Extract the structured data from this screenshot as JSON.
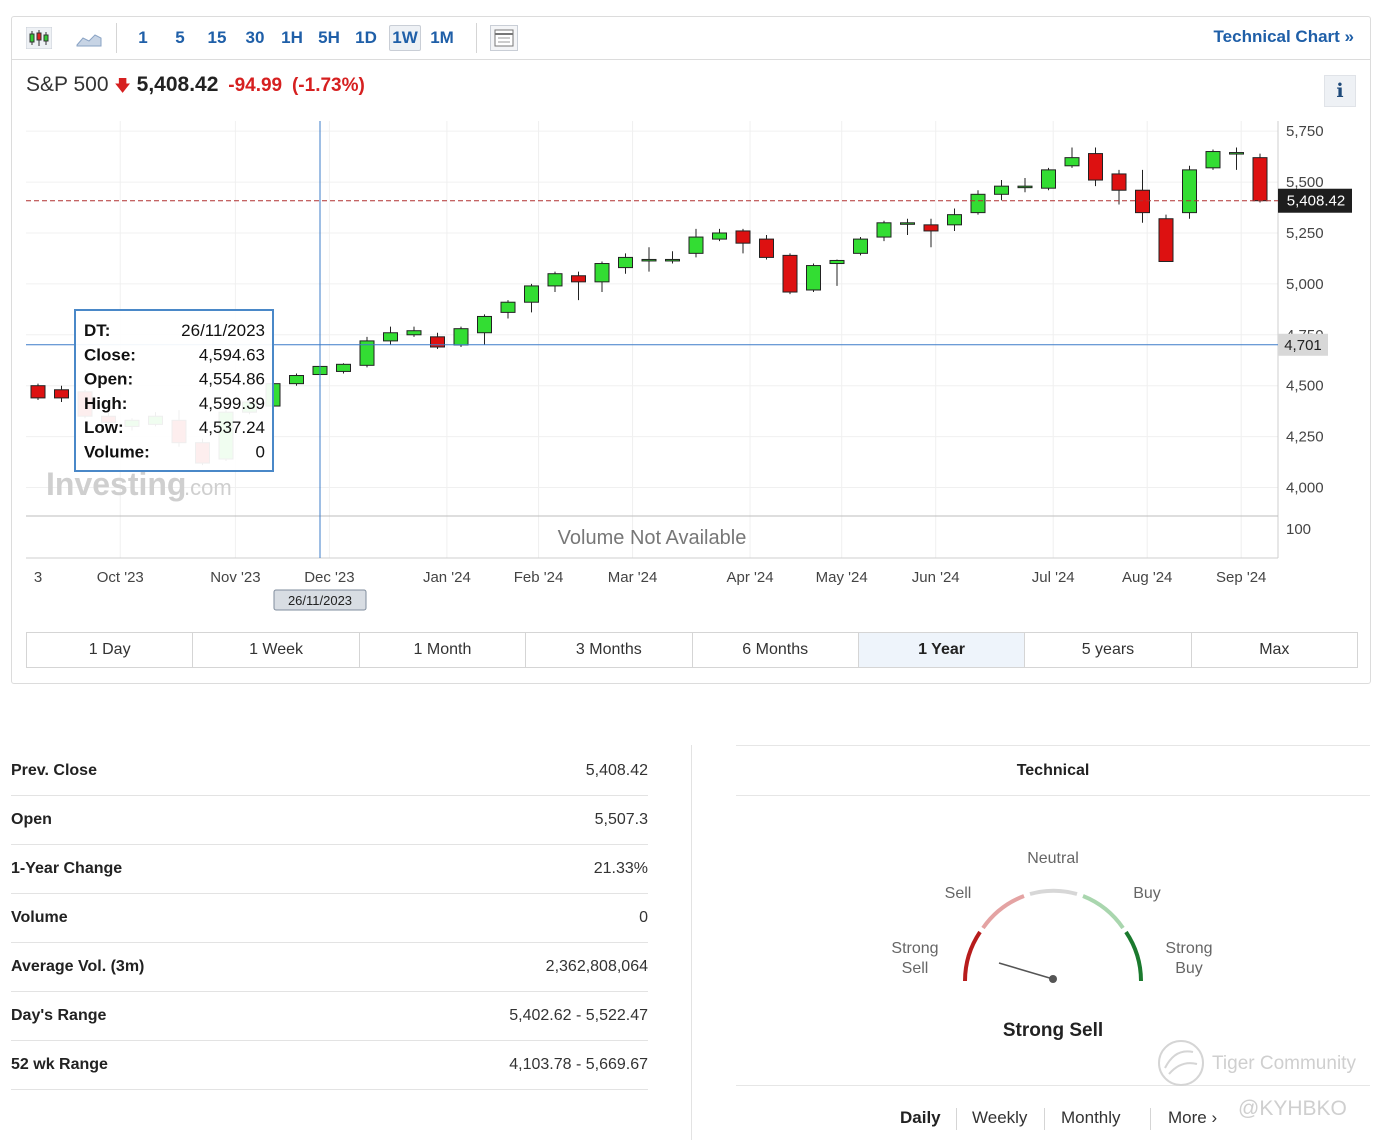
{
  "toolbar": {
    "intervals": [
      "1",
      "5",
      "15",
      "30",
      "1H",
      "5H",
      "1D",
      "1W",
      "1M"
    ],
    "active_interval": "1W",
    "technical_chart_link": "Technical Chart »"
  },
  "quote": {
    "name": "S&P 500",
    "price": "5,408.42",
    "change": "-94.99",
    "change_pct": "(-1.73%)",
    "direction": "down"
  },
  "tooltip": {
    "rows": [
      {
        "label": "DT:",
        "value": "26/11/2023"
      },
      {
        "label": "Close:",
        "value": "4,594.63"
      },
      {
        "label": "Open:",
        "value": "4,554.86"
      },
      {
        "label": "High:",
        "value": "4,599.39"
      },
      {
        "label": "Low:",
        "value": "4,537.24"
      },
      {
        "label": "Volume:",
        "value": "0"
      }
    ]
  },
  "crosshair": {
    "date_label": "26/11/2023",
    "price_label": "4,701",
    "price": 4701
  },
  "volume_note": "Volume Not Available",
  "volume_axis_label": "100",
  "watermark": {
    "brand": "Investing",
    "suffix": ".com"
  },
  "chart_data": {
    "type": "candlestick",
    "ylim": [
      3860,
      5800
    ],
    "y_ticks": [
      {
        "value": 4000,
        "label": "4,000"
      },
      {
        "value": 4250,
        "label": "4,250"
      },
      {
        "value": 4500,
        "label": "4,500"
      },
      {
        "value": 4750,
        "label": "4,750"
      },
      {
        "value": 5000,
        "label": "5,000"
      },
      {
        "value": 5250,
        "label": "5,250"
      },
      {
        "value": 5500,
        "label": "5,500"
      },
      {
        "value": 5750,
        "label": "5,750"
      }
    ],
    "x_ticks": [
      {
        "index": 0,
        "label": "3"
      },
      {
        "index": 3.5,
        "label": "Oct '23"
      },
      {
        "index": 8.4,
        "label": "Nov '23"
      },
      {
        "index": 12.4,
        "label": "Dec '23"
      },
      {
        "index": 17.4,
        "label": "Jan '24"
      },
      {
        "index": 21.3,
        "label": "Feb '24"
      },
      {
        "index": 25.3,
        "label": "Mar '24"
      },
      {
        "index": 30.3,
        "label": "Apr '24"
      },
      {
        "index": 34.2,
        "label": "May '24"
      },
      {
        "index": 38.2,
        "label": "Jun '24"
      },
      {
        "index": 43.2,
        "label": "Jul '24"
      },
      {
        "index": 47.2,
        "label": "Aug '24"
      },
      {
        "index": 51.2,
        "label": "Sep '24"
      }
    ],
    "last_price": {
      "value": 5408.42,
      "label": "5,408.42"
    },
    "candles": [
      {
        "o": 4500,
        "h": 4510,
        "l": 4430,
        "c": 4440
      },
      {
        "o": 4480,
        "h": 4500,
        "l": 4420,
        "c": 4440
      },
      {
        "o": 4470,
        "h": 4480,
        "l": 4340,
        "c": 4350
      },
      {
        "o": 4350,
        "h": 4390,
        "l": 4310,
        "c": 4320
      },
      {
        "o": 4300,
        "h": 4340,
        "l": 4280,
        "c": 4330
      },
      {
        "o": 4310,
        "h": 4370,
        "l": 4300,
        "c": 4350
      },
      {
        "o": 4330,
        "h": 4380,
        "l": 4200,
        "c": 4220
      },
      {
        "o": 4220,
        "h": 4240,
        "l": 4110,
        "c": 4120
      },
      {
        "o": 4140,
        "h": 4380,
        "l": 4130,
        "c": 4370
      },
      {
        "o": 4370,
        "h": 4430,
        "l": 4360,
        "c": 4420
      },
      {
        "o": 4400,
        "h": 4520,
        "l": 4390,
        "c": 4510
      },
      {
        "o": 4510,
        "h": 4560,
        "l": 4500,
        "c": 4550
      },
      {
        "o": 4554.86,
        "h": 4599.39,
        "l": 4537.24,
        "c": 4594.63
      },
      {
        "o": 4570,
        "h": 4610,
        "l": 4560,
        "c": 4605
      },
      {
        "o": 4600,
        "h": 4740,
        "l": 4590,
        "c": 4720
      },
      {
        "o": 4720,
        "h": 4790,
        "l": 4700,
        "c": 4760
      },
      {
        "o": 4750,
        "h": 4790,
        "l": 4740,
        "c": 4770
      },
      {
        "o": 4740,
        "h": 4760,
        "l": 4680,
        "c": 4690
      },
      {
        "o": 4700,
        "h": 4790,
        "l": 4690,
        "c": 4780
      },
      {
        "o": 4760,
        "h": 4850,
        "l": 4700,
        "c": 4840
      },
      {
        "o": 4860,
        "h": 4920,
        "l": 4830,
        "c": 4910
      },
      {
        "o": 4910,
        "h": 5000,
        "l": 4860,
        "c": 4990
      },
      {
        "o": 4990,
        "h": 5060,
        "l": 4960,
        "c": 5050
      },
      {
        "o": 5040,
        "h": 5060,
        "l": 4920,
        "c": 5010
      },
      {
        "o": 5010,
        "h": 5110,
        "l": 4960,
        "c": 5100
      },
      {
        "o": 5080,
        "h": 5150,
        "l": 5050,
        "c": 5130
      },
      {
        "o": 5120,
        "h": 5180,
        "l": 5060,
        "c": 5120
      },
      {
        "o": 5120,
        "h": 5160,
        "l": 5100,
        "c": 5120
      },
      {
        "o": 5150,
        "h": 5270,
        "l": 5130,
        "c": 5230
      },
      {
        "o": 5220,
        "h": 5270,
        "l": 5210,
        "c": 5250
      },
      {
        "o": 5260,
        "h": 5270,
        "l": 5150,
        "c": 5200
      },
      {
        "o": 5220,
        "h": 5240,
        "l": 5120,
        "c": 5130
      },
      {
        "o": 5140,
        "h": 5150,
        "l": 4950,
        "c": 4960
      },
      {
        "o": 4970,
        "h": 5100,
        "l": 4960,
        "c": 5090
      },
      {
        "o": 5100,
        "h": 5120,
        "l": 4990,
        "c": 5115
      },
      {
        "o": 5150,
        "h": 5230,
        "l": 5140,
        "c": 5220
      },
      {
        "o": 5230,
        "h": 5310,
        "l": 5210,
        "c": 5300
      },
      {
        "o": 5300,
        "h": 5320,
        "l": 5240,
        "c": 5300
      },
      {
        "o": 5290,
        "h": 5320,
        "l": 5180,
        "c": 5260
      },
      {
        "o": 5290,
        "h": 5370,
        "l": 5260,
        "c": 5340
      },
      {
        "o": 5350,
        "h": 5460,
        "l": 5340,
        "c": 5440
      },
      {
        "o": 5440,
        "h": 5510,
        "l": 5410,
        "c": 5480
      },
      {
        "o": 5480,
        "h": 5520,
        "l": 5450,
        "c": 5480
      },
      {
        "o": 5470,
        "h": 5570,
        "l": 5460,
        "c": 5560
      },
      {
        "o": 5580,
        "h": 5670,
        "l": 5570,
        "c": 5620
      },
      {
        "o": 5640,
        "h": 5670,
        "l": 5480,
        "c": 5510
      },
      {
        "o": 5540,
        "h": 5560,
        "l": 5390,
        "c": 5460
      },
      {
        "o": 5460,
        "h": 5560,
        "l": 5300,
        "c": 5350
      },
      {
        "o": 5320,
        "h": 5340,
        "l": 5110,
        "c": 5110
      },
      {
        "o": 5350,
        "h": 5580,
        "l": 5320,
        "c": 5560
      },
      {
        "o": 5570,
        "h": 5660,
        "l": 5560,
        "c": 5650
      },
      {
        "o": 5645,
        "h": 5670,
        "l": 5560,
        "c": 5645
      },
      {
        "o": 5620,
        "h": 5640,
        "l": 5400,
        "c": 5408.42
      }
    ]
  },
  "ranges": [
    "1 Day",
    "1 Week",
    "1 Month",
    "3 Months",
    "6 Months",
    "1 Year",
    "5 years",
    "Max"
  ],
  "active_range": "1 Year",
  "stats": [
    {
      "label": "Prev. Close",
      "value": "5,408.42"
    },
    {
      "label": "Open",
      "value": "5,507.3"
    },
    {
      "label": "1-Year Change",
      "value": "21.33%"
    },
    {
      "label": "Volume",
      "value": "0"
    },
    {
      "label": "Average Vol. (3m)",
      "value": "2,362,808,064"
    },
    {
      "label": "Day's Range",
      "value": "5,402.62 - 5,522.47"
    },
    {
      "label": "52 wk Range",
      "value": "4,103.78 - 5,669.67"
    }
  ],
  "technical": {
    "title": "Technical",
    "labels": {
      "strong_sell": "Strong Sell",
      "sell": "Sell",
      "neutral": "Neutral",
      "buy": "Buy",
      "strong_buy": "Strong Buy"
    },
    "result": "Strong Sell",
    "timeframes": [
      "Daily",
      "Weekly",
      "Monthly",
      "More"
    ],
    "active_timeframe": "Daily"
  },
  "credits": {
    "community": "Tiger Community",
    "handle": "@KYHBKO"
  },
  "colors": {
    "up": "#33dd33",
    "down": "#dd1111",
    "link": "#1f5fa8",
    "crosshair": "#3d7cc9",
    "last_price_line": "#b03030"
  }
}
